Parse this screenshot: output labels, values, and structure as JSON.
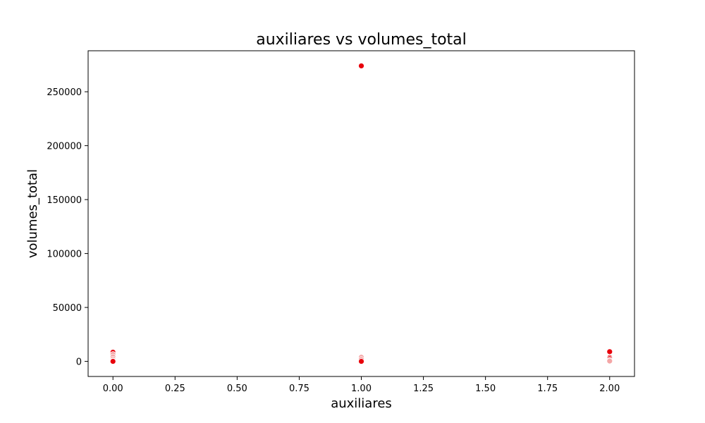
{
  "chart_data": {
    "type": "scatter",
    "title": "auxiliares vs volumes_total",
    "xlabel": "auxiliares",
    "ylabel": "volumes_total",
    "xlim": [
      -0.1,
      2.1
    ],
    "ylim": [
      -14000,
      288000
    ],
    "xticks": [
      0.0,
      0.25,
      0.5,
      0.75,
      1.0,
      1.25,
      1.5,
      1.75,
      2.0
    ],
    "xtick_labels": [
      "0.00",
      "0.25",
      "0.50",
      "0.75",
      "1.00",
      "1.25",
      "1.50",
      "1.75",
      "2.00"
    ],
    "yticks": [
      0,
      50000,
      100000,
      150000,
      200000,
      250000
    ],
    "ytick_labels": [
      "0",
      "50000",
      "100000",
      "150000",
      "200000",
      "250000"
    ],
    "grid": false,
    "point_color": "#e8000b",
    "point_colors_light": "#f4a6a6",
    "series": [
      {
        "name": "volumes_total",
        "points": [
          {
            "x": 0,
            "y": 8500,
            "shade": "strong"
          },
          {
            "x": 0,
            "y": 6500,
            "shade": "light"
          },
          {
            "x": 0,
            "y": 4200,
            "shade": "light"
          },
          {
            "x": 0,
            "y": 2200,
            "shade": "light"
          },
          {
            "x": 0,
            "y": 600,
            "shade": "light"
          },
          {
            "x": 0,
            "y": 0,
            "shade": "strong"
          },
          {
            "x": 1,
            "y": 274000,
            "shade": "strong"
          },
          {
            "x": 1,
            "y": 3800,
            "shade": "light"
          },
          {
            "x": 1,
            "y": 1800,
            "shade": "light"
          },
          {
            "x": 1,
            "y": 0,
            "shade": "strong"
          },
          {
            "x": 2,
            "y": 9000,
            "shade": "strong"
          },
          {
            "x": 2,
            "y": 3500,
            "shade": "strong"
          },
          {
            "x": 2,
            "y": 2500,
            "shade": "strong"
          },
          {
            "x": 2,
            "y": 1200,
            "shade": "light"
          },
          {
            "x": 2,
            "y": 300,
            "shade": "light"
          }
        ]
      }
    ]
  }
}
